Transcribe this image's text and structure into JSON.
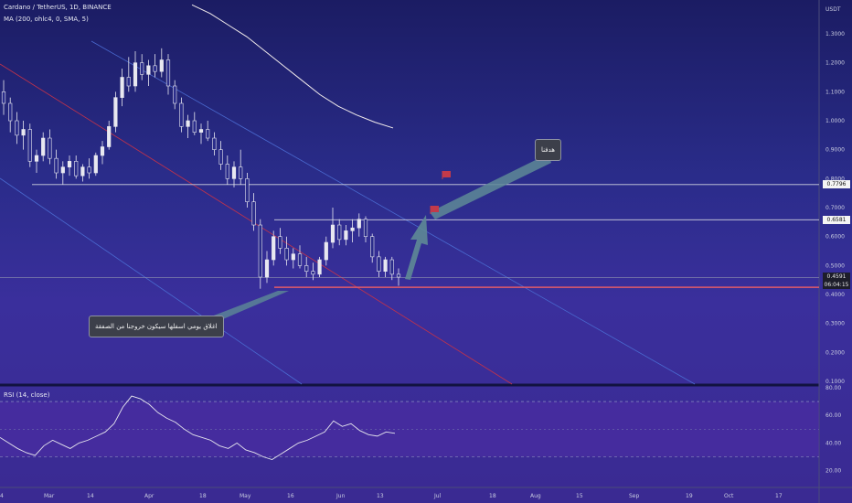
{
  "header": {
    "symbol_line": "Cardano / TetherUS, 1D, BINANCE",
    "indicator_line": "MA (200, ohlc4, 0, SMA, 5)",
    "rsi_label": "RSI (14, close)"
  },
  "price_scale": {
    "currency": "USDT",
    "ticks": [
      "1.3000",
      "1.2000",
      "1.1000",
      "1.0000",
      "0.9000",
      "0.8000",
      "0.7000",
      "0.6000",
      "0.5000",
      "0.4000",
      "0.3000",
      "0.2000",
      "0.1000"
    ],
    "tags": [
      {
        "label": "0.7796",
        "value": 0.7796
      },
      {
        "label": "0.6581",
        "value": 0.6581
      }
    ],
    "current_price": {
      "label": "0.4591",
      "countdown": "06:04:15",
      "value": 0.4591
    }
  },
  "rsi_scale": {
    "ticks": [
      "80.00",
      "60.00",
      "40.00",
      "20.00"
    ],
    "tick_values": [
      80,
      60,
      40,
      20
    ],
    "bands": [
      70,
      30
    ],
    "mid": 50
  },
  "time_axis": {
    "labels": [
      "4",
      "Mar",
      "14",
      "Apr",
      "18",
      "May",
      "16",
      "Jun",
      "13",
      "Jul",
      "18",
      "Aug",
      "15",
      "Sep",
      "19",
      "Oct",
      "17"
    ]
  },
  "callouts": {
    "target": "هدفنا",
    "stop": "اغلاق يومي اسفلها سيكون خروجنا من الصفقة"
  },
  "colors": {
    "bg_top": "#1b1c63",
    "bg_bottom": "#3a2a92",
    "candle": "#e8e8f0",
    "ma": "#f2ecec",
    "support_line": "#e05a6a",
    "horizontal_level": "#d0d2e0",
    "channel_red": "#c2324a",
    "channel_blue": "#4a6ad0",
    "arrow": "#5e8a96",
    "flag": "#c23a4a",
    "rsi_line": "#e6e6ee"
  },
  "chart_data": {
    "type": "candlestick",
    "title": "Cardano / TetherUS, 1D, BINANCE",
    "ylim": [
      0.1,
      1.35
    ],
    "ohlc": [
      [
        1.1,
        1.14,
        1.02,
        1.06
      ],
      [
        1.06,
        1.08,
        0.96,
        1.0
      ],
      [
        1.0,
        1.03,
        0.92,
        0.95
      ],
      [
        0.95,
        1.0,
        0.9,
        0.97
      ],
      [
        0.97,
        0.99,
        0.84,
        0.86
      ],
      [
        0.86,
        0.9,
        0.82,
        0.88
      ],
      [
        0.88,
        0.96,
        0.86,
        0.94
      ],
      [
        0.94,
        0.97,
        0.85,
        0.87
      ],
      [
        0.87,
        0.9,
        0.8,
        0.82
      ],
      [
        0.82,
        0.86,
        0.78,
        0.84
      ],
      [
        0.84,
        0.88,
        0.81,
        0.86
      ],
      [
        0.86,
        0.88,
        0.8,
        0.81
      ],
      [
        0.81,
        0.85,
        0.79,
        0.84
      ],
      [
        0.84,
        0.87,
        0.8,
        0.82
      ],
      [
        0.82,
        0.89,
        0.81,
        0.88
      ],
      [
        0.88,
        0.93,
        0.85,
        0.91
      ],
      [
        0.91,
        1.0,
        0.9,
        0.98
      ],
      [
        0.98,
        1.1,
        0.96,
        1.08
      ],
      [
        1.08,
        1.18,
        1.05,
        1.15
      ],
      [
        1.15,
        1.22,
        1.1,
        1.12
      ],
      [
        1.12,
        1.24,
        1.1,
        1.2
      ],
      [
        1.2,
        1.23,
        1.14,
        1.16
      ],
      [
        1.16,
        1.21,
        1.12,
        1.19
      ],
      [
        1.19,
        1.23,
        1.15,
        1.17
      ],
      [
        1.17,
        1.25,
        1.15,
        1.21
      ],
      [
        1.21,
        1.23,
        1.09,
        1.12
      ],
      [
        1.12,
        1.14,
        1.04,
        1.06
      ],
      [
        1.06,
        1.08,
        0.96,
        0.98
      ],
      [
        0.98,
        1.02,
        0.94,
        1.0
      ],
      [
        1.0,
        1.03,
        0.95,
        0.96
      ],
      [
        0.96,
        0.99,
        0.92,
        0.97
      ],
      [
        0.97,
        1.0,
        0.93,
        0.94
      ],
      [
        0.94,
        0.96,
        0.88,
        0.9
      ],
      [
        0.9,
        0.93,
        0.83,
        0.85
      ],
      [
        0.85,
        0.88,
        0.78,
        0.8
      ],
      [
        0.8,
        0.86,
        0.77,
        0.84
      ],
      [
        0.84,
        0.9,
        0.78,
        0.8
      ],
      [
        0.8,
        0.82,
        0.7,
        0.72
      ],
      [
        0.72,
        0.75,
        0.62,
        0.64
      ],
      [
        0.64,
        0.66,
        0.42,
        0.46
      ],
      [
        0.46,
        0.55,
        0.44,
        0.52
      ],
      [
        0.52,
        0.62,
        0.5,
        0.6
      ],
      [
        0.6,
        0.63,
        0.54,
        0.56
      ],
      [
        0.56,
        0.6,
        0.5,
        0.52
      ],
      [
        0.52,
        0.56,
        0.49,
        0.54
      ],
      [
        0.54,
        0.57,
        0.49,
        0.5
      ],
      [
        0.5,
        0.53,
        0.46,
        0.48
      ],
      [
        0.48,
        0.51,
        0.45,
        0.47
      ],
      [
        0.47,
        0.53,
        0.46,
        0.52
      ],
      [
        0.52,
        0.6,
        0.5,
        0.58
      ],
      [
        0.58,
        0.7,
        0.56,
        0.64
      ],
      [
        0.64,
        0.66,
        0.57,
        0.59
      ],
      [
        0.59,
        0.64,
        0.57,
        0.62
      ],
      [
        0.62,
        0.66,
        0.58,
        0.63
      ],
      [
        0.63,
        0.68,
        0.6,
        0.66
      ],
      [
        0.66,
        0.67,
        0.58,
        0.6
      ],
      [
        0.6,
        0.61,
        0.51,
        0.53
      ],
      [
        0.53,
        0.55,
        0.46,
        0.48
      ],
      [
        0.48,
        0.53,
        0.46,
        0.52
      ],
      [
        0.52,
        0.53,
        0.45,
        0.47
      ],
      [
        0.47,
        0.49,
        0.43,
        0.46
      ]
    ],
    "ma200": [
      1.4,
      1.37,
      1.33,
      1.29,
      1.24,
      1.19,
      1.14,
      1.09,
      1.05,
      1.02,
      0.995,
      0.975
    ],
    "levels": [
      0.7796,
      0.6581,
      0.4591,
      0.425
    ],
    "rsi": [
      44,
      40,
      36,
      33,
      31,
      38,
      42,
      39,
      36,
      40,
      42,
      45,
      48,
      54,
      66,
      74,
      72,
      68,
      62,
      58,
      55,
      50,
      46,
      44,
      42,
      38,
      36,
      40,
      35,
      33,
      30,
      28,
      32,
      36,
      40,
      42,
      45,
      48,
      56,
      52,
      54,
      49,
      46,
      45,
      48,
      47
    ]
  }
}
